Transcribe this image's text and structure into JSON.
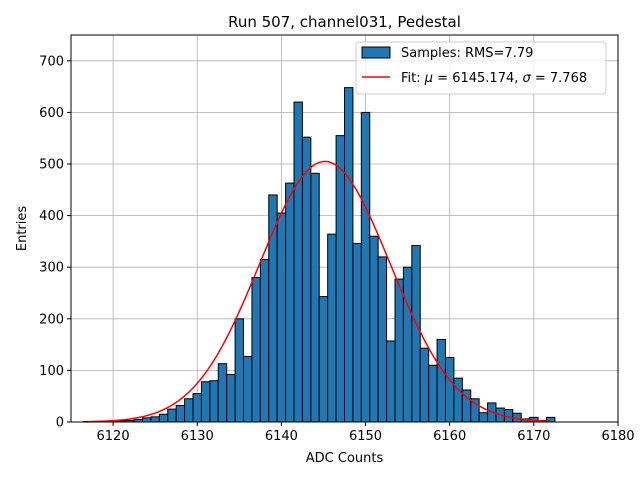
{
  "chart_data": {
    "type": "bar",
    "title": "Run 507, channel031, Pedestal",
    "xlabel": "ADC Counts",
    "ylabel": "Entries",
    "xlim": [
      6115,
      6180
    ],
    "ylim": [
      0,
      750
    ],
    "xticks": [
      "6120",
      "6130",
      "6140",
      "6150",
      "6160",
      "6170",
      "6180"
    ],
    "yticks": [
      "0",
      "100",
      "200",
      "300",
      "400",
      "500",
      "600",
      "700"
    ],
    "grid": true,
    "legend_position": "top-right",
    "colors": {
      "bars": "#1f77b4",
      "bar_edge": "#000000",
      "fit": "#ff0000"
    },
    "legend": {
      "samples": "Samples: RMS=7.79",
      "fit_prefix": "Fit: ",
      "mu_symbol": "μ",
      "fit_middle": " = 6145.174, ",
      "sigma_symbol": "σ",
      "fit_suffix": " = 7.768"
    },
    "bin_width": 1,
    "bins": [
      {
        "x": 6117,
        "y": 1
      },
      {
        "x": 6118,
        "y": 1
      },
      {
        "x": 6119,
        "y": 1
      },
      {
        "x": 6120,
        "y": 2
      },
      {
        "x": 6121,
        "y": 2
      },
      {
        "x": 6122,
        "y": 3
      },
      {
        "x": 6123,
        "y": 5
      },
      {
        "x": 6124,
        "y": 8
      },
      {
        "x": 6125,
        "y": 10
      },
      {
        "x": 6126,
        "y": 15
      },
      {
        "x": 6127,
        "y": 25
      },
      {
        "x": 6128,
        "y": 32
      },
      {
        "x": 6129,
        "y": 45
      },
      {
        "x": 6130,
        "y": 55
      },
      {
        "x": 6131,
        "y": 78
      },
      {
        "x": 6132,
        "y": 80
      },
      {
        "x": 6133,
        "y": 113
      },
      {
        "x": 6134,
        "y": 92
      },
      {
        "x": 6135,
        "y": 200
      },
      {
        "x": 6136,
        "y": 127
      },
      {
        "x": 6137,
        "y": 280
      },
      {
        "x": 6138,
        "y": 315
      },
      {
        "x": 6139,
        "y": 440
      },
      {
        "x": 6140,
        "y": 405
      },
      {
        "x": 6141,
        "y": 463
      },
      {
        "x": 6142,
        "y": 620
      },
      {
        "x": 6143,
        "y": 552
      },
      {
        "x": 6144,
        "y": 482
      },
      {
        "x": 6145,
        "y": 243
      },
      {
        "x": 6146,
        "y": 364
      },
      {
        "x": 6147,
        "y": 555
      },
      {
        "x": 6148,
        "y": 648
      },
      {
        "x": 6149,
        "y": 346
      },
      {
        "x": 6150,
        "y": 600
      },
      {
        "x": 6151,
        "y": 360
      },
      {
        "x": 6152,
        "y": 320
      },
      {
        "x": 6153,
        "y": 157
      },
      {
        "x": 6154,
        "y": 277
      },
      {
        "x": 6155,
        "y": 300
      },
      {
        "x": 6156,
        "y": 342
      },
      {
        "x": 6157,
        "y": 143
      },
      {
        "x": 6158,
        "y": 110
      },
      {
        "x": 6159,
        "y": 160
      },
      {
        "x": 6160,
        "y": 125
      },
      {
        "x": 6161,
        "y": 85
      },
      {
        "x": 6162,
        "y": 62
      },
      {
        "x": 6163,
        "y": 45
      },
      {
        "x": 6164,
        "y": 18
      },
      {
        "x": 6165,
        "y": 37
      },
      {
        "x": 6166,
        "y": 27
      },
      {
        "x": 6167,
        "y": 24
      },
      {
        "x": 6168,
        "y": 17
      },
      {
        "x": 6169,
        "y": 6
      },
      {
        "x": 6170,
        "y": 9
      },
      {
        "x": 6171,
        "y": 3
      },
      {
        "x": 6172,
        "y": 9
      }
    ],
    "fit": {
      "mu": 6145.174,
      "sigma": 7.768,
      "amplitude": 505,
      "x_range": [
        6117,
        6172
      ]
    }
  }
}
